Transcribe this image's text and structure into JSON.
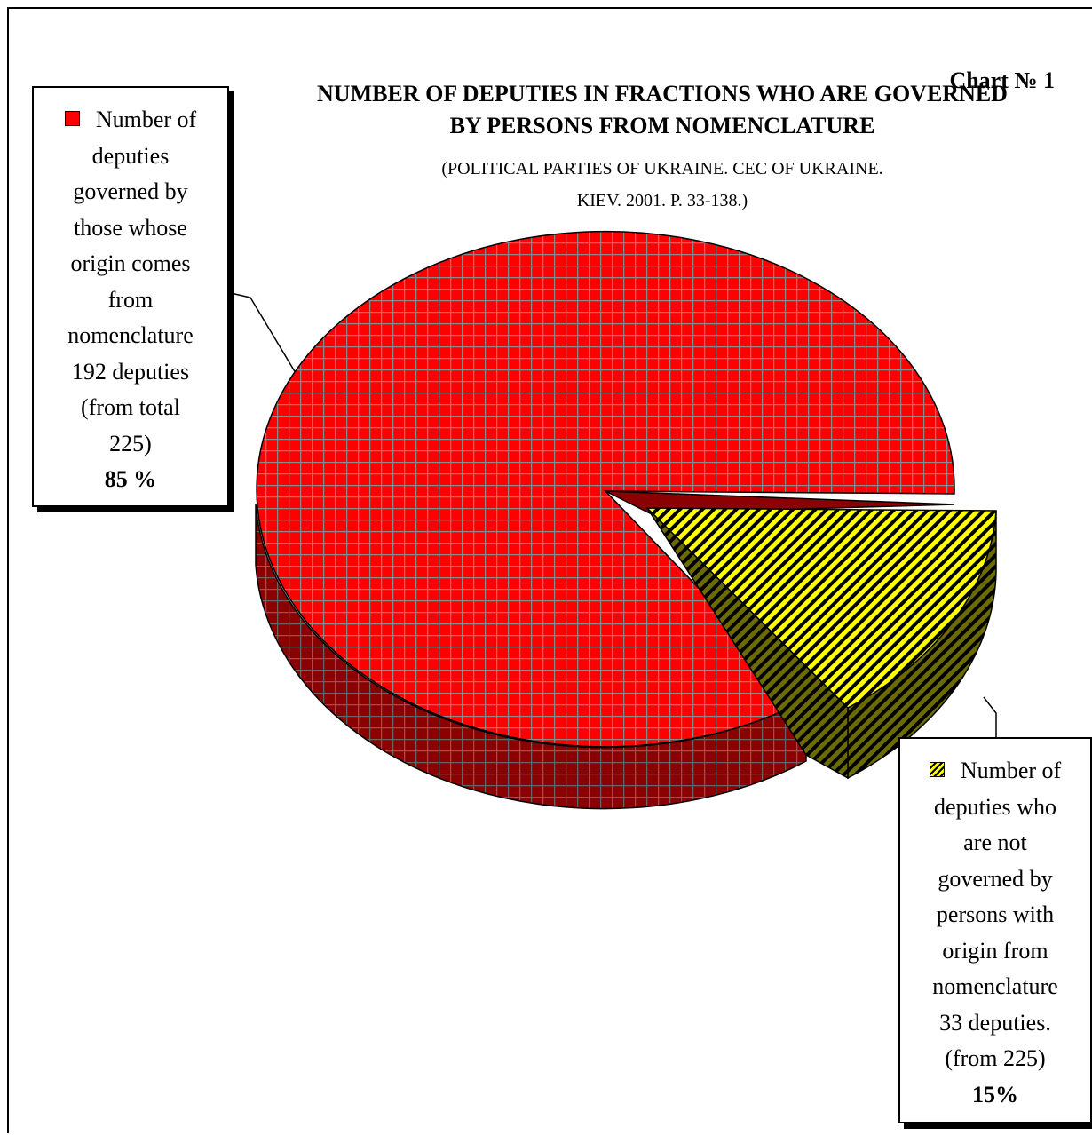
{
  "chart_data": {
    "type": "pie",
    "chart_number": "Chart № 1",
    "title": "NUMBER OF DEPUTIES IN FRACTIONS WHO ARE GOVERNED BY PERSONS FROM NOMENCLATURE",
    "title_lines": [
      "NUMBER OF DEPUTIES IN FRACTIONS WHO ARE GOVERNED",
      "BY PERSONS FROM NOMENCLATURE"
    ],
    "subtitle_lines": [
      "(POLITICAL PARTIES OF UKRAINE. CEC OF UKRAINE.",
      "KIEV. 2001. P. 33-138.)"
    ],
    "three_d": true,
    "slices": [
      {
        "label_lines": [
          "Number of",
          "deputies",
          "governed by",
          "those whose",
          "origin comes",
          "from",
          "nomenclature",
          "192 deputies",
          "(from total",
          "225)"
        ],
        "value": 192,
        "percent_label": "85 %",
        "percent": 85,
        "color": "#ff0000",
        "side_color": "#8b0000",
        "pattern": "grid",
        "exploded": false
      },
      {
        "label_lines": [
          "Number of",
          "deputies who",
          "are not",
          "governed by",
          "persons with",
          "origin from",
          "nomenclature",
          "33 deputies.",
          "(from 225)"
        ],
        "value": 33,
        "percent_label": "15%",
        "percent": 15,
        "color": "#ffff00",
        "side_color": "#7a7a00",
        "pattern": "diagonal-stripes",
        "exploded": true
      }
    ]
  }
}
